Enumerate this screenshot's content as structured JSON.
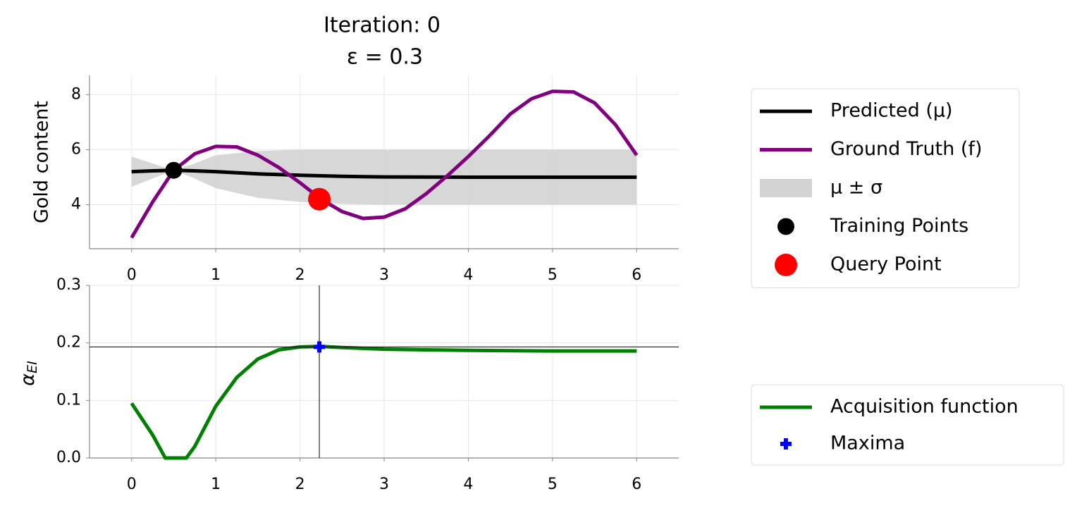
{
  "chart_data": [
    {
      "type": "line",
      "title": "Iteration: 0",
      "subtitle": "ε = 0.3",
      "ylabel": "Gold content",
      "xlim": [
        -0.5,
        6.5
      ],
      "ylim": [
        2.4,
        8.7
      ],
      "xticks": [
        0,
        1,
        2,
        3,
        4,
        5,
        6
      ],
      "yticks": [
        4,
        6,
        8
      ],
      "grid": true,
      "legend": "outside right",
      "series": [
        {
          "name": "Predicted (μ)",
          "kind": "line",
          "color": "#000000",
          "x": [
            0,
            0.25,
            0.5,
            0.75,
            1,
            1.5,
            2,
            2.5,
            3,
            4,
            5,
            6
          ],
          "values": [
            5.2,
            5.23,
            5.25,
            5.23,
            5.2,
            5.12,
            5.07,
            5.03,
            5.01,
            5.0,
            5.0,
            5.0
          ]
        },
        {
          "name": "Ground Truth (f)",
          "kind": "line",
          "color": "#800080",
          "x": [
            0,
            0.25,
            0.5,
            0.75,
            1,
            1.25,
            1.5,
            1.75,
            2,
            2.25,
            2.5,
            2.75,
            3,
            3.25,
            3.5,
            3.75,
            4,
            4.25,
            4.5,
            4.75,
            5,
            5.25,
            5.5,
            5.75,
            6
          ],
          "values": [
            2.8,
            4.1,
            5.25,
            5.85,
            6.12,
            6.1,
            5.8,
            5.35,
            4.8,
            4.2,
            3.75,
            3.5,
            3.55,
            3.85,
            4.4,
            5.05,
            5.75,
            6.5,
            7.3,
            7.85,
            8.12,
            8.1,
            7.7,
            6.9,
            5.8
          ]
        },
        {
          "name": "μ ± σ",
          "kind": "band",
          "color": "#d3d3d3",
          "x": [
            0,
            0.25,
            0.5,
            0.75,
            1,
            1.5,
            2,
            2.5,
            3,
            4,
            5,
            6
          ],
          "lower": [
            4.65,
            4.95,
            5.25,
            4.95,
            4.6,
            4.25,
            4.1,
            4.03,
            4.0,
            4.0,
            4.0,
            4.0
          ],
          "upper": [
            5.75,
            5.5,
            5.25,
            5.5,
            5.8,
            5.95,
            6.0,
            6.0,
            6.0,
            6.0,
            6.0,
            6.0
          ]
        },
        {
          "name": "Training Points",
          "kind": "scatter",
          "marker": "circle",
          "color": "#000000",
          "x": [
            0.5
          ],
          "values": [
            5.25
          ]
        },
        {
          "name": "Query Point",
          "kind": "scatter",
          "marker": "circle",
          "color": "#ff0000",
          "x": [
            2.23
          ],
          "values": [
            4.2
          ]
        }
      ]
    },
    {
      "type": "line",
      "ylabel": "α",
      "ylabel_subscript": "EI",
      "xlim": [
        -0.5,
        6.5
      ],
      "ylim": [
        0,
        0.3
      ],
      "xticks": [
        0,
        1,
        2,
        3,
        4,
        5,
        6
      ],
      "yticks": [
        {
          "value": 0,
          "label": "0.0"
        },
        0.1,
        0.2,
        0.3
      ],
      "grid": true,
      "legend": "outside right",
      "series": [
        {
          "name": "Acquisition function",
          "kind": "line",
          "color": "#008000",
          "x": [
            0,
            0.25,
            0.4,
            0.5,
            0.65,
            0.75,
            1,
            1.25,
            1.5,
            1.75,
            2,
            2.25,
            2.5,
            3,
            3.5,
            4,
            5,
            6
          ],
          "values": [
            0.095,
            0.04,
            0.0,
            0.0,
            0.0,
            0.02,
            0.09,
            0.14,
            0.172,
            0.188,
            0.193,
            0.194,
            0.192,
            0.189,
            0.188,
            0.187,
            0.186,
            0.186
          ]
        },
        {
          "name": "Maxima",
          "kind": "scatter",
          "marker": "plus",
          "crosshair": true,
          "color": "#0000ff",
          "x": [
            2.23
          ],
          "values": [
            0.193
          ]
        }
      ]
    }
  ]
}
